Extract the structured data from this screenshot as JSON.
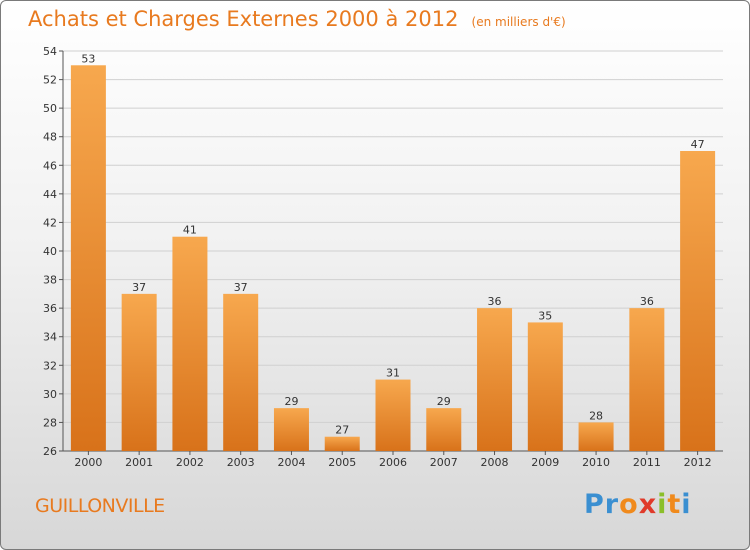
{
  "title": "Achats et Charges Externes 2000 à 2012",
  "unit": "(en milliers d'€)",
  "commune": "GUILLONVILLE",
  "logo": {
    "text": "Proxiti",
    "letters": [
      {
        "ch": "P",
        "color": "#3a8fd1"
      },
      {
        "ch": "r",
        "color": "#3a8fd1"
      },
      {
        "ch": "o",
        "color": "#f08a1c"
      },
      {
        "ch": "x",
        "color": "#e03a2a"
      },
      {
        "ch": "i",
        "color": "#8bbf2a"
      },
      {
        "ch": "t",
        "color": "#f08a1c"
      },
      {
        "ch": "i",
        "color": "#3a8fd1"
      }
    ]
  },
  "colors": {
    "bar_light": "#f7a84e",
    "bar_dark": "#d8721a",
    "title": "#e87a1f"
  },
  "chart_data": {
    "type": "bar",
    "categories": [
      "2000",
      "2001",
      "2002",
      "2003",
      "2004",
      "2005",
      "2006",
      "2007",
      "2008",
      "2009",
      "2010",
      "2011",
      "2012"
    ],
    "values": [
      53,
      37,
      41,
      37,
      29,
      27,
      31,
      29,
      36,
      35,
      28,
      36,
      47
    ],
    "ylim": [
      26,
      54
    ],
    "yticks": [
      26,
      28,
      30,
      32,
      34,
      36,
      38,
      40,
      42,
      44,
      46,
      48,
      50,
      52,
      54
    ],
    "grid": true,
    "xlabel": "",
    "ylabel": ""
  }
}
